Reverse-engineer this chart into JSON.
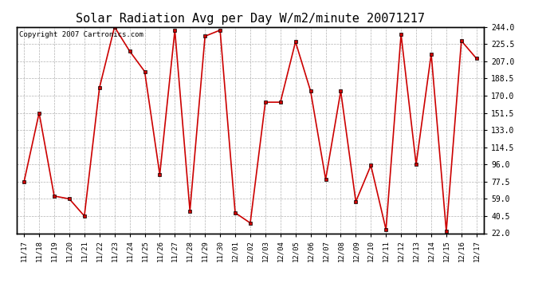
{
  "title": "Solar Radiation Avg per Day W/m2/minute 20071217",
  "copyright_text": "Copyright 2007 Cartronics.com",
  "labels": [
    "11/17",
    "11/18",
    "11/19",
    "11/20",
    "11/21",
    "11/22",
    "11/23",
    "11/24",
    "11/25",
    "11/26",
    "11/27",
    "11/28",
    "11/29",
    "11/30",
    "12/01",
    "12/02",
    "12/03",
    "12/04",
    "12/05",
    "12/06",
    "12/07",
    "12/08",
    "12/09",
    "12/10",
    "12/11",
    "12/12",
    "12/13",
    "12/14",
    "12/15",
    "12/16",
    "12/17"
  ],
  "values": [
    77.5,
    151.5,
    62.0,
    59.0,
    40.5,
    178.5,
    244.0,
    218.0,
    196.0,
    85.0,
    240.5,
    46.0,
    234.0,
    240.5,
    44.0,
    33.0,
    163.0,
    163.0,
    228.0,
    175.0,
    80.0,
    175.0,
    56.0,
    95.0,
    26.0,
    236.0,
    96.0,
    215.0,
    24.0,
    229.0,
    210.0
  ],
  "line_color": "#cc0000",
  "marker": "s",
  "marker_size": 3,
  "ylim": [
    22.0,
    244.0
  ],
  "yticks": [
    22.0,
    40.5,
    59.0,
    77.5,
    96.0,
    114.5,
    133.0,
    151.5,
    170.0,
    188.5,
    207.0,
    225.5,
    244.0
  ],
  "bg_color": "#ffffff",
  "plot_bg_color": "#ffffff",
  "grid_color": "#aaaaaa",
  "title_fontsize": 11,
  "copyright_fontsize": 6.5,
  "xtick_fontsize": 6.5,
  "ytick_fontsize": 7
}
